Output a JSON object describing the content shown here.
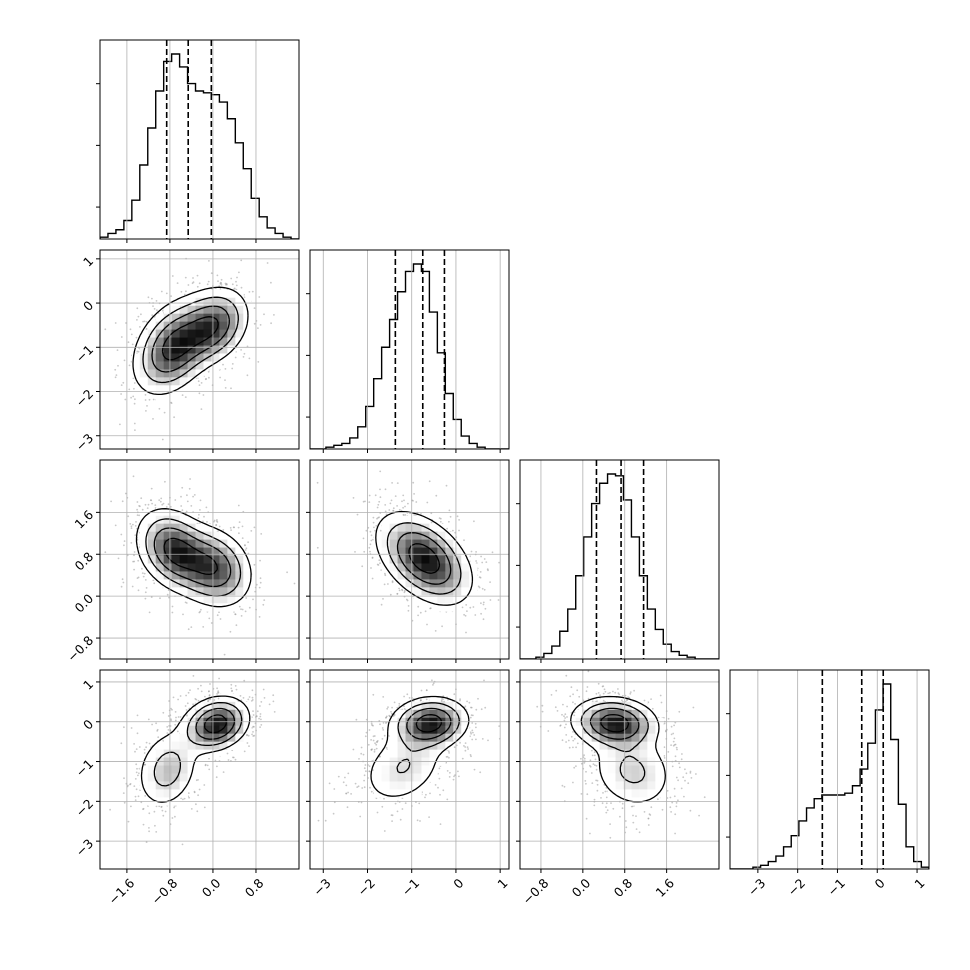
{
  "chart_data": {
    "type": "corner",
    "title": "",
    "parameters": [
      "",
      "",
      "",
      ""
    ],
    "ranges": [
      [
        -2.1,
        1.6
      ],
      [
        -3.3,
        1.2
      ],
      [
        -1.2,
        2.6
      ],
      [
        -3.7,
        1.3
      ]
    ],
    "ticks": [
      [
        -1.6,
        -0.8,
        0.0,
        0.8
      ],
      [
        -3,
        -2,
        -1,
        0,
        1
      ],
      [
        -0.8,
        0.0,
        0.8,
        1.6
      ],
      [
        -3,
        -2,
        -1,
        0,
        1
      ]
    ],
    "tick_labels": [
      [
        "−1.6",
        "−0.8",
        "0.0",
        "0.8"
      ],
      [
        "−3",
        "−2",
        "−1",
        "0",
        "1"
      ],
      [
        "−0.8",
        "0.0",
        "0.8",
        "1.6"
      ],
      [
        "−3",
        "−2",
        "−1",
        "0",
        "1"
      ]
    ],
    "quantiles": [
      [
        -0.86,
        -0.46,
        -0.03
      ],
      [
        -1.37,
        -0.75,
        -0.26
      ],
      [
        0.26,
        0.73,
        1.16
      ],
      [
        -1.38,
        -0.39,
        0.15
      ]
    ],
    "histograms": [
      [
        0.01,
        0.03,
        0.05,
        0.1,
        0.21,
        0.4,
        0.6,
        0.8,
        0.96,
        1.0,
        0.93,
        0.84,
        0.8,
        0.79,
        0.78,
        0.74,
        0.65,
        0.52,
        0.38,
        0.22,
        0.12,
        0.06,
        0.03,
        0.01,
        0.0
      ],
      [
        0.0,
        0.0,
        0.01,
        0.02,
        0.03,
        0.06,
        0.12,
        0.23,
        0.38,
        0.55,
        0.7,
        0.85,
        0.96,
        1.0,
        0.96,
        0.74,
        0.52,
        0.3,
        0.16,
        0.07,
        0.03,
        0.01,
        0.0,
        0.0,
        0.0
      ],
      [
        0.0,
        0.0,
        0.01,
        0.03,
        0.07,
        0.15,
        0.27,
        0.45,
        0.66,
        0.84,
        0.95,
        1.0,
        0.99,
        0.86,
        0.66,
        0.45,
        0.27,
        0.16,
        0.08,
        0.04,
        0.02,
        0.01,
        0.0,
        0.0,
        0.0
      ],
      [
        0.0,
        0.0,
        0.0,
        0.01,
        0.02,
        0.04,
        0.07,
        0.12,
        0.18,
        0.26,
        0.33,
        0.38,
        0.4,
        0.4,
        0.4,
        0.41,
        0.45,
        0.54,
        0.68,
        0.86,
        1.0,
        0.7,
        0.35,
        0.12,
        0.04,
        0.01
      ]
    ],
    "grid": true,
    "colors": {
      "points": "#9a9a9a",
      "contour": "#000000",
      "axis": "#000000",
      "grid": "#b0b0b0"
    }
  }
}
